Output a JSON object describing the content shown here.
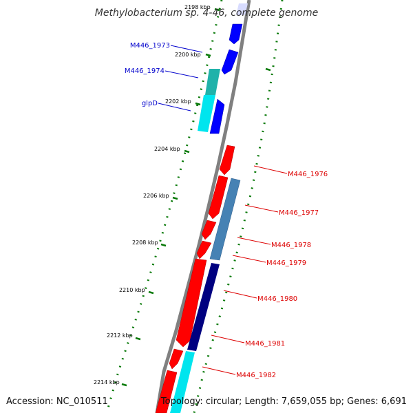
{
  "title": "Methylobacterium sp. 4-46, complete genome",
  "footer": {
    "accession": "Accession: NC_010511",
    "summary": "Topology: circular; Length: 7,659,055 bp; Genes: 6,691"
  },
  "ticks": [
    "2198 kbp",
    "2200 kbp",
    "2202 kbp",
    "2204 kbp",
    "2206 kbp",
    "2208 kbp",
    "2210 kbp",
    "2212 kbp",
    "2214 kbp"
  ],
  "forward_genes": [
    "M446_1973",
    "M446_1974",
    "glpD"
  ],
  "reverse_genes": [
    "M446_1976",
    "M446_1977",
    "M446_1978",
    "M446_1979",
    "M446_1980",
    "M446_1981",
    "M446_1982"
  ],
  "colors": {
    "forward_label": "#0000cc",
    "reverse_label": "#dd0000",
    "backbone": "#808080",
    "dotted_ring": "#0a7a0a",
    "blue": "#0000ff",
    "red": "#ff0000",
    "cyan": "#00e5ee",
    "teal": "#20b2aa",
    "steelblue": "#4682b4",
    "navy": "#000080"
  }
}
